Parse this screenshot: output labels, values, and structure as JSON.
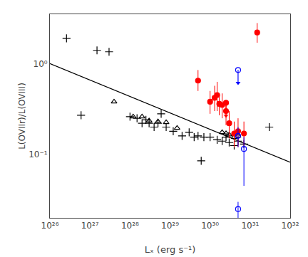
{
  "chart_data": {
    "type": "scatter",
    "log": true,
    "grid": false,
    "xlabel": "Lₓ (erg s⁻¹)",
    "ylabel": "L(OVIIr)/L(OVIII)",
    "xlim": [
      1e+26,
      1e+32
    ],
    "ylim": [
      0.02,
      3.5
    ],
    "xticks": [
      {
        "value": 1e+26,
        "label": "10²⁶"
      },
      {
        "value": 1e+27,
        "label": "10²⁷"
      },
      {
        "value": 1e+28,
        "label": "10²⁸"
      },
      {
        "value": 1e+29,
        "label": "10²⁹"
      },
      {
        "value": 1e+30,
        "label": "10³⁰"
      },
      {
        "value": 1e+31,
        "label": "10³¹"
      },
      {
        "value": 1e+32,
        "label": "10³²"
      }
    ],
    "yticks": [
      {
        "value": 0.1,
        "label": "10⁻¹"
      },
      {
        "value": 1,
        "label": "10⁰"
      }
    ],
    "series": [
      {
        "type": "line",
        "color": "black",
        "line_style": "solid",
        "x": [
          1e+26,
          1e+32
        ],
        "values": [
          1.0,
          0.082
        ]
      },
      {
        "type": "scatter",
        "color": "black",
        "marker": "plus",
        "x": [
          2.6e+26,
          6e+26,
          1.5e+27,
          3e+27,
          1e+28,
          1.5e+28,
          2e+28,
          2.5e+28,
          3e+28,
          4e+28,
          5e+28,
          6e+28,
          8e+28,
          1.2e+29,
          2e+29,
          3e+29,
          4e+29,
          5e+29,
          7e+29,
          1e+30,
          1.5e+30,
          2e+30,
          2.5e+30,
          3e+30,
          4e+30,
          5e+30,
          7e+30,
          3e+31,
          6e+29
        ],
        "values": [
          1.9,
          0.27,
          1.4,
          1.35,
          0.26,
          0.25,
          0.22,
          0.24,
          0.22,
          0.2,
          0.22,
          0.28,
          0.2,
          0.18,
          0.16,
          0.175,
          0.155,
          0.16,
          0.155,
          0.155,
          0.145,
          0.14,
          0.155,
          0.135,
          0.125,
          0.14,
          0.13,
          0.2,
          0.085
        ]
      },
      {
        "type": "scatter",
        "color": "black",
        "marker": "triangle-open",
        "x": [
          4e+27,
          1.2e+28,
          2e+28,
          3e+28,
          5e+28,
          8e+28,
          1.5e+29,
          2e+30,
          2.5e+30,
          3e+30,
          4e+30,
          5e+30
        ],
        "values": [
          0.38,
          0.26,
          0.26,
          0.235,
          0.23,
          0.225,
          0.195,
          0.175,
          0.17,
          0.165,
          0.155,
          0.16
        ]
      },
      {
        "type": "scatter",
        "color": "red",
        "marker": "circle",
        "x": [
          5e+29,
          1e+30,
          1.3e+30,
          1.5e+30,
          1.7e+30,
          2e+30,
          2.5e+30,
          3e+30,
          4e+30,
          5e+30,
          7e+30,
          1.5e+31
        ],
        "values": [
          0.65,
          0.38,
          0.42,
          0.45,
          0.36,
          0.35,
          0.3,
          0.22,
          0.17,
          0.18,
          0.17,
          2.2
        ],
        "error_upper": [
          0.2,
          0.12,
          0.15,
          0.18,
          0.1,
          0.12,
          0.1,
          0.08,
          0.06,
          0.07,
          0.06,
          0.6
        ],
        "error_lower": [
          0.15,
          0.1,
          0.12,
          0.15,
          0.09,
          0.1,
          0.09,
          0.07,
          0.05,
          0.06,
          0.05,
          0.5
        ]
      },
      {
        "type": "scatter",
        "color": "red",
        "marker": "circle",
        "x": [
          2.5e+30
        ],
        "values": [
          0.37
        ],
        "arrow_end": [
          0.2664
        ]
      },
      {
        "type": "scatter",
        "color": "blue",
        "marker": "circle-open",
        "x": [
          5e+30
        ],
        "values": [
          0.85
        ],
        "arrow_end": [
          0.612
        ]
      },
      {
        "type": "scatter",
        "color": "blue",
        "marker": "circle-open",
        "x": [
          5e+30,
          7e+30,
          5e+30
        ],
        "values": [
          0.16,
          0.115,
          0.025
        ],
        "error_upper": [
          0.04,
          0.04,
          0.005
        ],
        "error_lower": [
          0.04,
          0.07,
          0.005
        ]
      }
    ]
  }
}
